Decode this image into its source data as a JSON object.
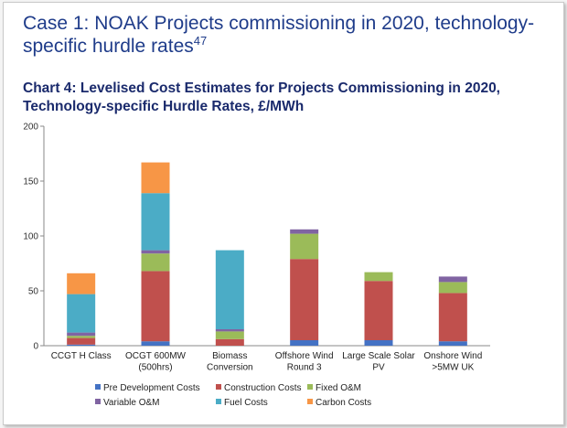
{
  "heading": {
    "text": "Case 1: NOAK Projects commissioning in 2020, technology-specific hurdle rates",
    "footnote": "47"
  },
  "chart_data": {
    "type": "bar",
    "stacked": true,
    "title": "Chart 4: Levelised Cost Estimates for Projects Commissioning in 2020, Technology-specific Hurdle Rates, £/MWh",
    "xlabel": "",
    "ylabel": "",
    "ylim": [
      0,
      200
    ],
    "yticks": [
      0,
      50,
      100,
      150,
      200
    ],
    "grid": false,
    "legend_position": "bottom",
    "categories": [
      [
        "CCGT H Class"
      ],
      [
        "OCGT 600MW",
        "(500hrs)"
      ],
      [
        "Biomass",
        "Conversion"
      ],
      [
        "Offshore Wind",
        "Round 3"
      ],
      [
        "Large Scale Solar",
        "PV"
      ],
      [
        "Onshore Wind",
        ">5MW UK"
      ]
    ],
    "series": [
      {
        "name": "Pre Development Costs",
        "color": "#4472c4",
        "values": [
          1,
          4,
          0,
          5,
          5,
          4
        ]
      },
      {
        "name": "Construction Costs",
        "color": "#c0504d",
        "values": [
          6,
          64,
          6,
          74,
          54,
          44
        ]
      },
      {
        "name": "Fixed O&M",
        "color": "#9bbb59",
        "values": [
          2,
          16,
          7,
          23,
          8,
          10
        ]
      },
      {
        "name": "Variable O&M",
        "color": "#8064a2",
        "values": [
          3,
          3,
          2,
          4,
          0,
          5
        ]
      },
      {
        "name": "Fuel Costs",
        "color": "#4bacc6",
        "values": [
          35,
          52,
          72,
          0,
          0,
          0
        ]
      },
      {
        "name": "Carbon Costs",
        "color": "#f79646",
        "values": [
          19,
          28,
          0,
          0,
          0,
          0
        ]
      }
    ]
  }
}
